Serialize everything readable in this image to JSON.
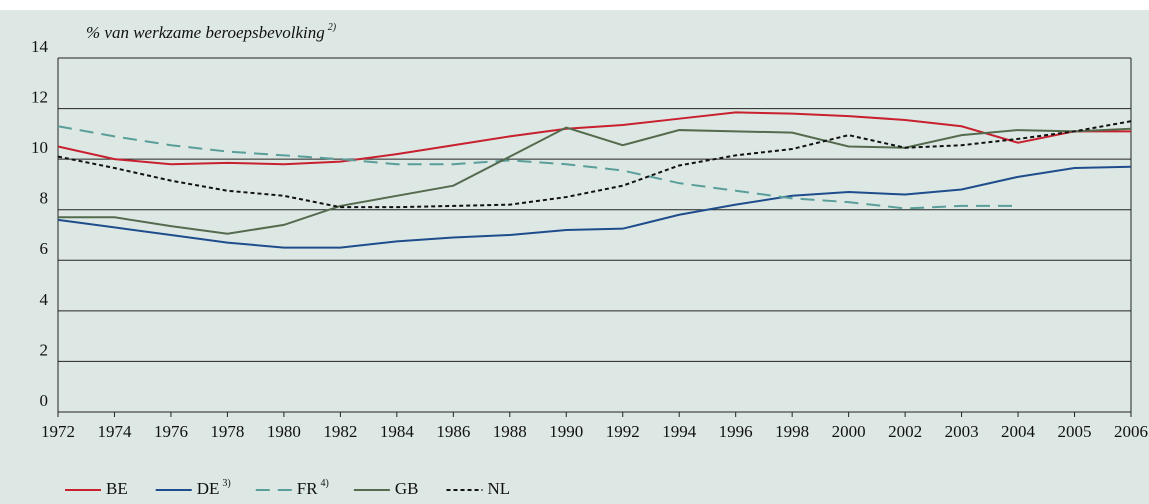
{
  "chart_data": {
    "type": "line",
    "y_label": "% van werkzame beroepsbevolking",
    "y_label_note": "2)",
    "categories": [
      "1972",
      "1974",
      "1976",
      "1978",
      "1980",
      "1982",
      "1984",
      "1986",
      "1988",
      "1990",
      "1992",
      "1994",
      "1996",
      "1998",
      "2000",
      "2002",
      "2003",
      "2004",
      "2005",
      "2006"
    ],
    "series": [
      {
        "name": "BE",
        "color": "#c8202f",
        "dash": "solid",
        "values": [
          10.5,
          10.0,
          9.8,
          9.85,
          9.8,
          9.9,
          10.2,
          10.55,
          10.9,
          11.2,
          11.35,
          11.6,
          11.85,
          11.8,
          11.7,
          11.55,
          11.3,
          10.65,
          11.1,
          11.1
        ]
      },
      {
        "name": "DE",
        "note": "3)",
        "color": "#1f4d8c",
        "dash": "solid",
        "values": [
          7.6,
          7.3,
          7.0,
          6.7,
          6.5,
          6.5,
          6.75,
          6.9,
          7.0,
          7.2,
          7.25,
          7.8,
          8.2,
          8.55,
          8.7,
          8.6,
          8.8,
          9.3,
          9.65,
          9.7
        ]
      },
      {
        "name": "FR",
        "note": "4)",
        "color": "#5a9e9a",
        "dash": "long",
        "values": [
          11.3,
          10.9,
          10.55,
          10.3,
          10.15,
          10.0,
          9.8,
          9.8,
          9.95,
          9.8,
          9.55,
          9.05,
          8.75,
          8.45,
          8.3,
          8.05,
          8.15,
          8.15,
          null,
          null
        ]
      },
      {
        "name": "GB",
        "color": "#556b4e",
        "dash": "solid",
        "values": [
          7.7,
          7.7,
          7.35,
          7.05,
          7.4,
          8.15,
          8.55,
          8.95,
          10.1,
          11.25,
          10.55,
          11.15,
          11.1,
          11.05,
          10.5,
          10.45,
          10.95,
          11.15,
          11.1,
          11.2
        ]
      },
      {
        "name": "NL",
        "color": "#111111",
        "dash": "short",
        "values": [
          10.1,
          9.65,
          9.15,
          8.75,
          8.55,
          8.1,
          8.1,
          8.15,
          8.2,
          8.5,
          8.95,
          9.75,
          10.15,
          10.4,
          10.95,
          10.45,
          10.55,
          10.8,
          11.1,
          11.5
        ]
      }
    ],
    "ylim": [
      0,
      14
    ],
    "yticks": [
      0,
      2,
      4,
      6,
      8,
      10,
      12,
      14
    ],
    "grid": true
  }
}
